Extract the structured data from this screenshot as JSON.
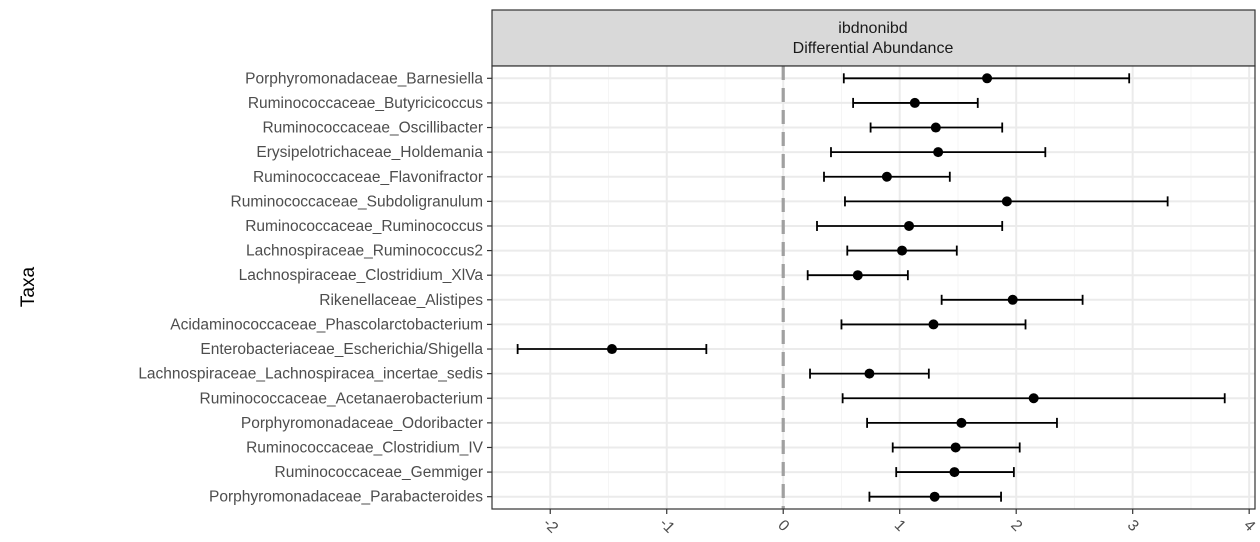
{
  "chart_data": {
    "type": "scatter",
    "subtype": "forest-plot-with-error-bars",
    "strip": {
      "line1": "ibdnonibd",
      "line2": "Differential Abundance"
    },
    "ylabel": "Taxa",
    "xlabel": "",
    "xlim": [
      -2.5,
      4.05
    ],
    "x_ticks": [
      -2,
      -1,
      0,
      1,
      2,
      3,
      4
    ],
    "reference_line_x": 0,
    "grid": true,
    "taxa": [
      {
        "name": "Porphyromonadaceae_Barnesiella",
        "est": 1.75,
        "lo": 0.52,
        "hi": 2.97
      },
      {
        "name": "Ruminococcaceae_Butyricicoccus",
        "est": 1.13,
        "lo": 0.6,
        "hi": 1.67
      },
      {
        "name": "Ruminococcaceae_Oscillibacter",
        "est": 1.31,
        "lo": 0.75,
        "hi": 1.88
      },
      {
        "name": "Erysipelotrichaceae_Holdemania",
        "est": 1.33,
        "lo": 0.41,
        "hi": 2.25
      },
      {
        "name": "Ruminococcaceae_Flavonifractor",
        "est": 0.89,
        "lo": 0.35,
        "hi": 1.43
      },
      {
        "name": "Ruminococcaceae_Subdoligranulum",
        "est": 1.92,
        "lo": 0.53,
        "hi": 3.3
      },
      {
        "name": "Ruminococcaceae_Ruminococcus",
        "est": 1.08,
        "lo": 0.29,
        "hi": 1.88
      },
      {
        "name": "Lachnospiraceae_Ruminococcus2",
        "est": 1.02,
        "lo": 0.55,
        "hi": 1.49
      },
      {
        "name": "Lachnospiraceae_Clostridium_XlVa",
        "est": 0.64,
        "lo": 0.21,
        "hi": 1.07
      },
      {
        "name": "Rikenellaceae_Alistipes",
        "est": 1.97,
        "lo": 1.36,
        "hi": 2.57
      },
      {
        "name": "Acidaminococcaceae_Phascolarctobacterium",
        "est": 1.29,
        "lo": 0.5,
        "hi": 2.08
      },
      {
        "name": "Enterobacteriaceae_Escherichia/Shigella",
        "est": -1.47,
        "lo": -2.28,
        "hi": -0.66
      },
      {
        "name": "Lachnospiraceae_Lachnospiracea_incertae_sedis",
        "est": 0.74,
        "lo": 0.23,
        "hi": 1.25
      },
      {
        "name": "Ruminococcaceae_Acetanaerobacterium",
        "est": 2.15,
        "lo": 0.51,
        "hi": 3.79
      },
      {
        "name": "Porphyromonadaceae_Odoribacter",
        "est": 1.53,
        "lo": 0.72,
        "hi": 2.35
      },
      {
        "name": "Ruminococcaceae_Clostridium_IV",
        "est": 1.48,
        "lo": 0.94,
        "hi": 2.03
      },
      {
        "name": "Ruminococcaceae_Gemmiger",
        "est": 1.47,
        "lo": 0.97,
        "hi": 1.98
      },
      {
        "name": "Porphyromonadaceae_Parabacteroides",
        "est": 1.3,
        "lo": 0.74,
        "hi": 1.87
      }
    ]
  },
  "colors": {
    "point": "#000000",
    "errorbar": "#000000",
    "reference_line": "#a0a0a0",
    "grid_major": "#ebebeb",
    "grid_minor": "#f5f5f5",
    "strip_fill": "#d9d9d9",
    "panel_border": "#333333",
    "label_text": "#4d4d4d"
  }
}
